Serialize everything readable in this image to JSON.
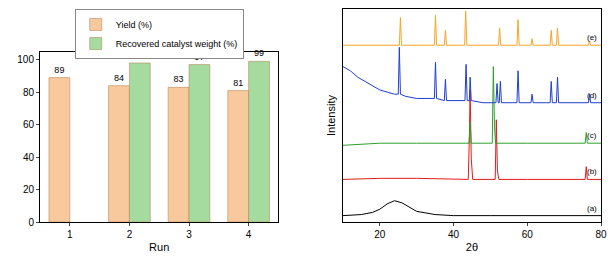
{
  "chart_data": [
    {
      "type": "bar",
      "x_label": "Run",
      "categories": [
        "1",
        "2",
        "3",
        "4"
      ],
      "series": [
        {
          "name": "Yield (%)",
          "color": "#f8c99c",
          "values": [
            89,
            84,
            83,
            81
          ]
        },
        {
          "name": "Recovered catalyst weight (%)",
          "color": "#a6dba0",
          "values": [
            null,
            98,
            97,
            99
          ]
        }
      ],
      "ylim": [
        0,
        105
      ],
      "yticks": [
        0,
        20,
        40,
        60,
        80,
        100
      ],
      "data_labels": true,
      "legend": "top",
      "grid": false
    },
    {
      "type": "line",
      "x_label": "2θ",
      "y_label": "Intensity",
      "xlim": [
        10,
        80
      ],
      "xticks": [
        20,
        40,
        60,
        80
      ],
      "ylim": [
        0,
        100
      ],
      "tick_labels": "x",
      "grid": false,
      "series": [
        {
          "name": "(a)",
          "color": "#000000",
          "x": [
            10,
            15,
            18,
            20,
            22,
            24,
            26,
            28,
            30,
            35,
            40,
            50,
            60,
            70,
            80
          ],
          "values": [
            3,
            3.5,
            4.5,
            6,
            8.5,
            10,
            9,
            7,
            5,
            3.5,
            3,
            3,
            3,
            3,
            3
          ]
        },
        {
          "name": "(b)",
          "color": "#e41a1c",
          "x": [
            10,
            20,
            30,
            40,
            44,
            44.3,
            44.5,
            44.8,
            45.2,
            51.3,
            51.6,
            51.9,
            52.3,
            60,
            70,
            75.7,
            76,
            76.3,
            80
          ],
          "values": [
            20,
            20.5,
            20.5,
            20,
            20,
            40,
            62,
            30,
            20,
            20,
            48,
            24,
            20,
            20,
            20,
            20,
            26,
            20,
            20
          ]
        },
        {
          "name": "(c)",
          "color": "#2ca02c",
          "x": [
            10,
            20,
            30,
            40,
            44.2,
            44.5,
            44.8,
            50.5,
            50.8,
            51.1,
            51.4,
            60,
            70,
            75.7,
            76,
            76.3,
            80
          ],
          "values": [
            36,
            37,
            37,
            37,
            37,
            47,
            37,
            37,
            73,
            45,
            37,
            37,
            37,
            37,
            42,
            37,
            37
          ]
        },
        {
          "name": "(d)",
          "color": "#1f3fd0",
          "x": [
            10,
            12,
            14,
            16,
            18,
            20,
            22,
            24,
            25.0,
            25.3,
            25.6,
            27,
            30,
            33,
            34.8,
            35.1,
            35.4,
            37.5,
            37.8,
            38.1,
            41,
            43.1,
            43.4,
            43.7,
            44.3,
            44.5,
            44.8,
            48,
            51.5,
            51.8,
            52.1,
            52.4,
            52.7,
            53.0,
            56,
            57.2,
            57.5,
            57.8,
            61.0,
            61.3,
            61.6,
            64,
            66.2,
            66.5,
            66.8,
            67.9,
            68.2,
            68.5,
            72,
            75,
            76.6,
            76.9,
            77.2,
            80
          ],
          "values": [
            73,
            71,
            68,
            66,
            64,
            62,
            61,
            60,
            60,
            82,
            60,
            59,
            58,
            58,
            58,
            75,
            58,
            57,
            67,
            57,
            57,
            57,
            74,
            57,
            57,
            68,
            57,
            56,
            56,
            65,
            56,
            56,
            66,
            56,
            56,
            56,
            71,
            56,
            56,
            60,
            56,
            56,
            56,
            66,
            56,
            56,
            68,
            56,
            56,
            56,
            56,
            60,
            56,
            56
          ]
        },
        {
          "name": "(e)",
          "color": "#f5a623",
          "x": [
            10,
            20,
            25.3,
            25.6,
            25.9,
            30,
            34.8,
            35.1,
            35.4,
            37.5,
            37.8,
            38.1,
            43.0,
            43.3,
            43.6,
            52.2,
            52.5,
            52.8,
            57.2,
            57.5,
            57.8,
            61.0,
            61.3,
            61.6,
            66.2,
            66.5,
            66.8,
            67.9,
            68.2,
            68.5,
            76.6,
            76.9,
            77.2,
            80
          ],
          "values": [
            83,
            83,
            83,
            96,
            83,
            83,
            83,
            97,
            83,
            83,
            90,
            83,
            83,
            99,
            83,
            83,
            91,
            83,
            83,
            95,
            83,
            83,
            86,
            83,
            83,
            90,
            83,
            83,
            91,
            83,
            83,
            85,
            83,
            83
          ]
        }
      ]
    }
  ]
}
